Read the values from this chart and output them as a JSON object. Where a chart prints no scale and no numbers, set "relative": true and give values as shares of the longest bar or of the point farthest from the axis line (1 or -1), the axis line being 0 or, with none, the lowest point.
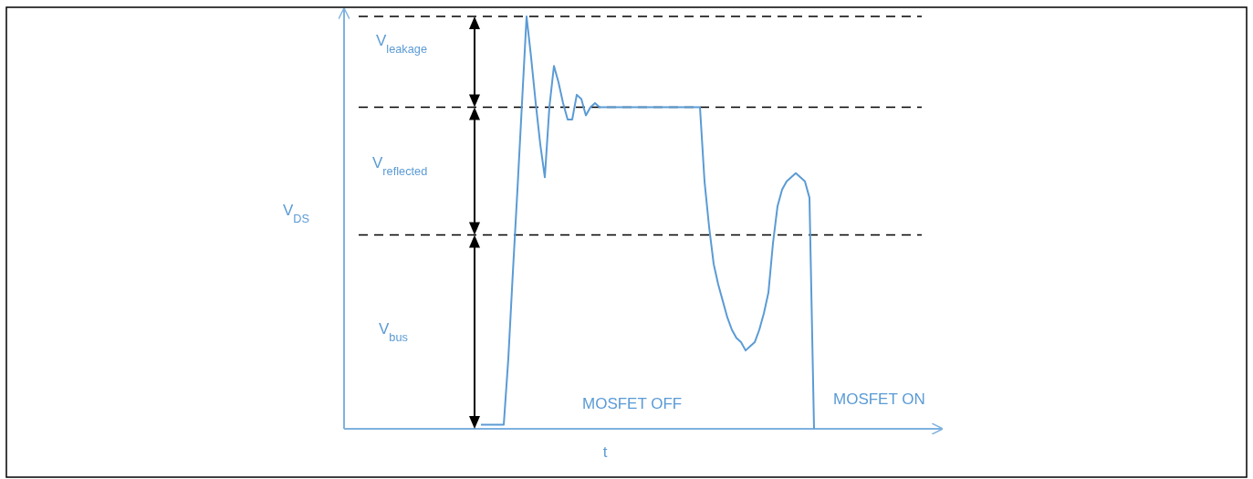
{
  "chart_data": {
    "type": "line",
    "relative": true,
    "xlabel": "t",
    "ylabel": "V$_{DS}$",
    "color": "#5b9bd5",
    "categories": [
      null,
      null,
      null,
      null,
      null,
      null,
      null,
      null,
      null,
      null,
      null,
      null,
      null,
      null,
      null,
      null,
      null,
      null,
      null,
      null,
      null,
      null,
      null,
      null,
      null,
      null,
      null,
      null,
      null,
      null,
      null,
      null,
      null,
      null,
      null,
      null,
      null,
      null,
      null,
      null,
      null,
      null,
      null,
      null,
      null,
      null,
      null,
      null,
      null,
      null,
      null,
      null,
      null,
      null,
      null,
      null,
      null,
      null,
      null,
      null,
      null,
      null,
      null,
      null,
      null,
      null,
      null,
      null,
      null,
      null,
      null,
      null,
      null,
      null,
      null,
      null,
      null,
      null,
      null,
      null,
      null,
      null,
      null,
      null,
      null,
      null,
      null,
      null,
      null,
      null,
      null,
      null,
      null,
      null,
      null,
      null,
      null,
      null,
      null,
      null,
      null,
      null,
      null,
      null,
      null,
      null,
      null,
      null,
      null,
      null,
      null,
      null,
      null,
      null,
      null,
      null,
      null,
      null,
      null,
      null,
      null,
      null,
      null,
      null,
      null,
      null,
      null,
      null,
      null,
      null,
      null
    ],
    "values": [
      null,
      null,
      null,
      null,
      null,
      null,
      null,
      null,
      null,
      null,
      null,
      null,
      null,
      null,
      null,
      null,
      null,
      null,
      null,
      null,
      null,
      null,
      null,
      null,
      null,
      null,
      null,
      null,
      null,
      null,
      0.01,
      0.01,
      0.01,
      0.01,
      0.01,
      0.01,
      0.17,
      0.38,
      0.58,
      0.79,
      1,
      0.9,
      0.79,
      0.69,
      0.61,
      0.78,
      0.88,
      0.84,
      0.79,
      0.75,
      0.75,
      0.81,
      0.8,
      0.76,
      0.78,
      0.79,
      0.78,
      0.78,
      0.78,
      0.78,
      0.78,
      0.78,
      0.78,
      0.78,
      0.78,
      0.78,
      0.78,
      0.78,
      0.78,
      0.78,
      0.78,
      0.78,
      0.78,
      0.78,
      0.78,
      0.78,
      0.78,
      0.78,
      0.78,
      0.6,
      0.49,
      0.4,
      0.35,
      0.31,
      0.27,
      0.24,
      0.22,
      0.21,
      0.19,
      0.2,
      0.21,
      0.24,
      0.28,
      0.33,
      0.45,
      0.54,
      0.58,
      0.6,
      0.61,
      0.62,
      0.61,
      0.6,
      0.56,
      0,
      null,
      null,
      null,
      null,
      null,
      null,
      null,
      null,
      null,
      null,
      null,
      null,
      null,
      null,
      null,
      null,
      null,
      null,
      null,
      null,
      null,
      null,
      null,
      null,
      null,
      null,
      null
    ],
    "ref_lines": [
      {
        "axis": "y",
        "value": 1,
        "color": "#000000",
        "line_style": "dashed"
      },
      {
        "axis": "y",
        "value": 0.78,
        "color": "#000000",
        "line_style": "dashed"
      },
      {
        "axis": "y",
        "value": 0.47,
        "color": "#000000",
        "line_style": "dashed"
      }
    ],
    "annotations": [
      "V$_{leakage}$",
      "V$_{reflected}$",
      "V$_{bus}$",
      "MOSFET OFF",
      "MOSFET ON"
    ]
  }
}
